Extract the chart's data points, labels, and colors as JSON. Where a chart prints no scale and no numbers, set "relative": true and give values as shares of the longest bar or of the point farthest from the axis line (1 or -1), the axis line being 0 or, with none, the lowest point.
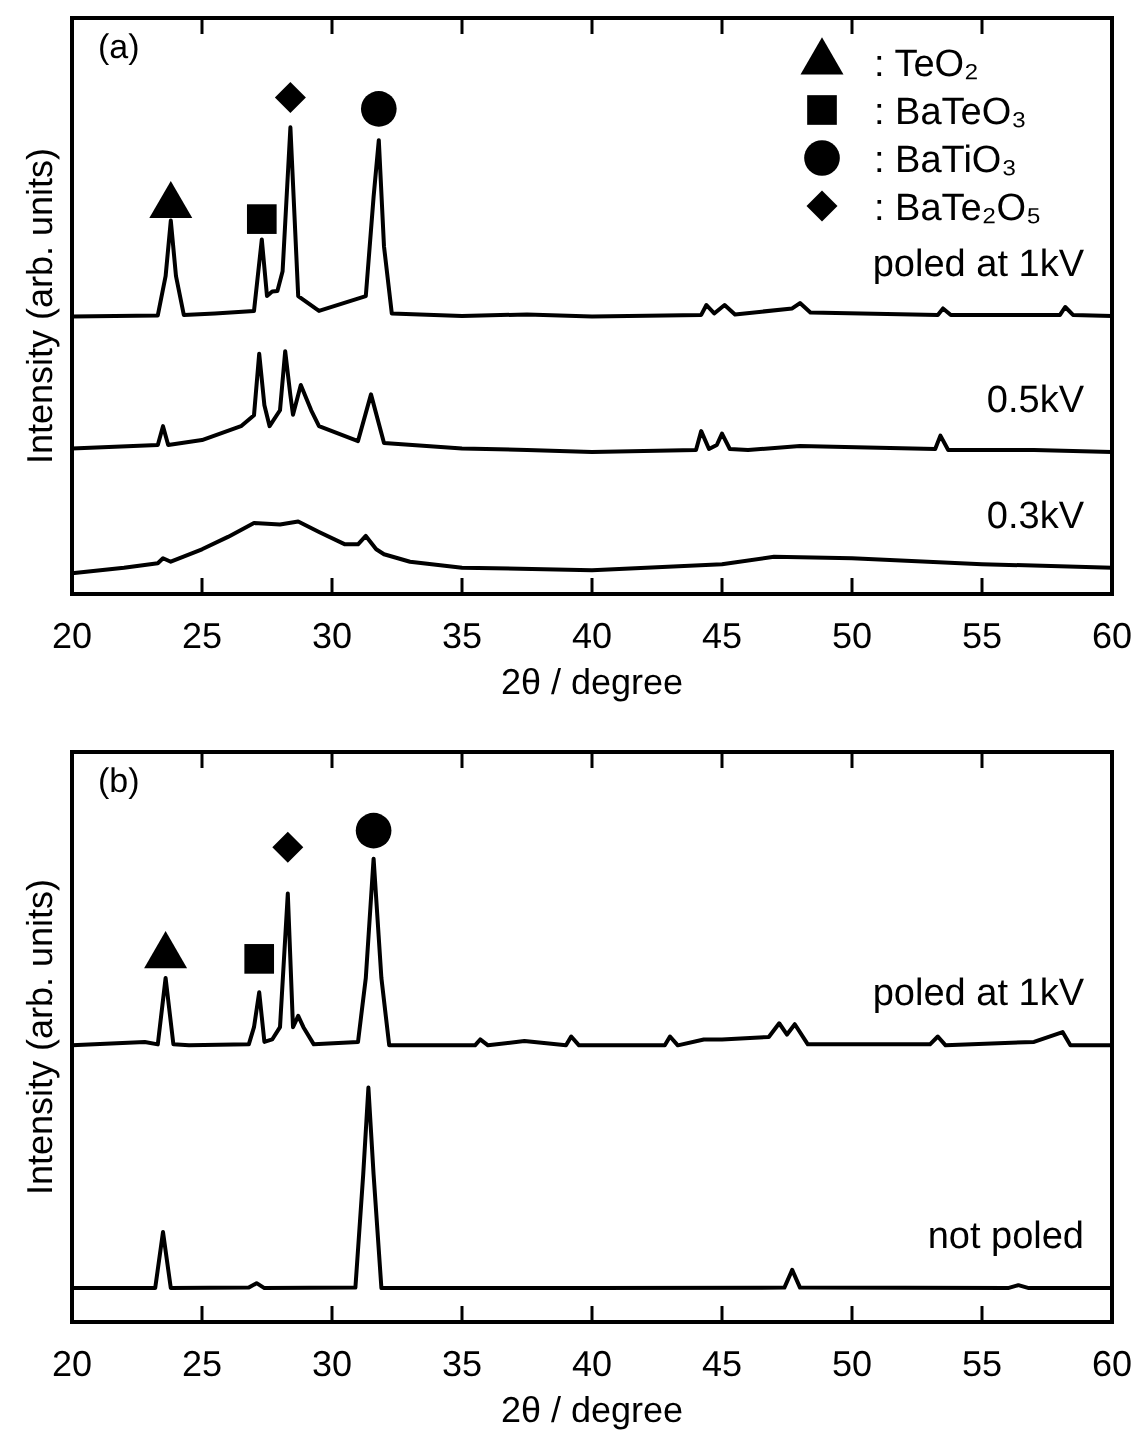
{
  "chart_data": [
    {
      "type": "line",
      "relative": true,
      "xlim": [
        20,
        60
      ],
      "xticks": [
        20,
        25,
        30,
        35,
        40,
        45,
        50,
        55,
        60
      ],
      "xlabel": "2θ / degree",
      "ylabel": "Intensity (arb. units)",
      "annotations": [
        "(a)"
      ],
      "legend": "top right",
      "series": [
        {
          "name": "poled at 1kV",
          "color": "#000000",
          "x": [
            20,
            23.3,
            23.6,
            23.8,
            24.0,
            24.3,
            25.5,
            27.0,
            27.3,
            27.5,
            27.7,
            27.9,
            28.1,
            28.4,
            28.7,
            29.5,
            31.3,
            31.6,
            31.8,
            32.0,
            32.3,
            35,
            37.5,
            40,
            44.2,
            44.4,
            44.7,
            45.1,
            45.5,
            47.7,
            48.0,
            48.4,
            53.3,
            53.5,
            53.8,
            58.0,
            58.2,
            58.5,
            60
          ],
          "values": [
            0.559,
            0.561,
            0.64,
            0.752,
            0.64,
            0.562,
            0.565,
            0.57,
            0.714,
            0.6,
            0.609,
            0.61,
            0.65,
            0.94,
            0.6,
            0.57,
            0.6,
            0.8,
            0.914,
            0.7,
            0.565,
            0.56,
            0.563,
            0.559,
            0.562,
            0.582,
            0.565,
            0.582,
            0.563,
            0.575,
            0.586,
            0.567,
            0.562,
            0.575,
            0.562,
            0.562,
            0.578,
            0.562,
            0.56
          ]
        },
        {
          "name": "0.5kV",
          "color": "#000000",
          "x": [
            20,
            23.3,
            23.5,
            23.7,
            25,
            26.5,
            27.0,
            27.2,
            27.4,
            27.6,
            28.0,
            28.2,
            28.4,
            28.5,
            28.8,
            29.2,
            29.5,
            31.0,
            31.5,
            32.0,
            35,
            37.5,
            40,
            44.0,
            44.2,
            44.5,
            44.8,
            45.0,
            45.3,
            46,
            48,
            53.2,
            53.4,
            53.7,
            57,
            60
          ],
          "values": [
            0.293,
            0.3,
            0.338,
            0.3,
            0.31,
            0.338,
            0.36,
            0.484,
            0.38,
            0.338,
            0.37,
            0.489,
            0.4,
            0.361,
            0.421,
            0.37,
            0.338,
            0.308,
            0.402,
            0.304,
            0.293,
            0.29,
            0.286,
            0.29,
            0.328,
            0.292,
            0.3,
            0.323,
            0.292,
            0.29,
            0.298,
            0.292,
            0.319,
            0.29,
            0.29,
            0.286
          ]
        },
        {
          "name": "0.3kV",
          "color": "#000000",
          "x": [
            20,
            22,
            23.3,
            23.5,
            23.8,
            25,
            26,
            27,
            28,
            28.7,
            29.5,
            30.5,
            31.0,
            31.3,
            31.7,
            32,
            33,
            35,
            40,
            45,
            47,
            50,
            55,
            60
          ],
          "values": [
            0.042,
            0.053,
            0.062,
            0.072,
            0.065,
            0.09,
            0.115,
            0.143,
            0.14,
            0.146,
            0.125,
            0.1,
            0.1,
            0.117,
            0.09,
            0.08,
            0.065,
            0.053,
            0.048,
            0.06,
            0.075,
            0.072,
            0.06,
            0.053
          ]
        },
        {
          "name": ": TeO₂",
          "type": "scatter",
          "marker": "triangle",
          "color": "#000000",
          "x": [
            23.8
          ],
          "values": [
            0.782
          ]
        },
        {
          "name": ": BaTeO₃",
          "type": "scatter",
          "marker": "square",
          "color": "#000000",
          "x": [
            27.3
          ],
          "values": [
            0.755
          ]
        },
        {
          "name": ": BaTiO₃",
          "type": "scatter",
          "marker": "circle",
          "color": "#000000",
          "x": [
            31.8
          ],
          "values": [
            0.977
          ]
        },
        {
          "name": ": BaTe₂O₅",
          "type": "scatter",
          "marker": "diamond",
          "color": "#000000",
          "x": [
            28.4
          ],
          "values": [
            1.0
          ]
        }
      ]
    },
    {
      "type": "line",
      "relative": true,
      "xlim": [
        20,
        60
      ],
      "xticks": [
        20,
        25,
        30,
        35,
        40,
        45,
        50,
        55,
        60
      ],
      "xlabel": "2θ / degree",
      "ylabel": "Intensity (arb. units)",
      "annotations": [
        "(b)"
      ],
      "series": [
        {
          "name": "poled at 1kV",
          "color": "#000000",
          "x": [
            20,
            22.8,
            23.3,
            23.6,
            23.9,
            24.5,
            26.8,
            27.0,
            27.2,
            27.4,
            27.7,
            28.0,
            28.3,
            28.5,
            28.7,
            28.9,
            29.3,
            31.0,
            31.3,
            31.6,
            31.9,
            32.2,
            35.5,
            35.7,
            36,
            37.4,
            39.0,
            39.2,
            39.5,
            42.8,
            43,
            43.3,
            44.3,
            45,
            46.8,
            47.2,
            47.5,
            47.8,
            48.3,
            53.0,
            53.3,
            53.6,
            57.0,
            58.1,
            58.4,
            60
          ],
          "values": [
            0.563,
            0.57,
            0.565,
            0.7,
            0.565,
            0.563,
            0.565,
            0.6,
            0.671,
            0.57,
            0.575,
            0.6,
            0.872,
            0.6,
            0.623,
            0.6,
            0.565,
            0.57,
            0.7,
            0.943,
            0.7,
            0.563,
            0.563,
            0.575,
            0.563,
            0.572,
            0.563,
            0.581,
            0.563,
            0.563,
            0.581,
            0.563,
            0.575,
            0.575,
            0.58,
            0.608,
            0.585,
            0.606,
            0.565,
            0.565,
            0.581,
            0.563,
            0.57,
            0.59,
            0.563,
            0.563
          ]
        },
        {
          "name": "not poled",
          "color": "#000000",
          "x": [
            20,
            23.2,
            23.5,
            23.8,
            26.8,
            27.1,
            27.4,
            30.9,
            31.2,
            31.4,
            31.6,
            31.9,
            35,
            40,
            47.4,
            47.7,
            48.0,
            56,
            56.4,
            56.8,
            60
          ],
          "values": [
            0.069,
            0.069,
            0.183,
            0.069,
            0.07,
            0.079,
            0.069,
            0.07,
            0.3,
            0.477,
            0.3,
            0.069,
            0.069,
            0.069,
            0.07,
            0.106,
            0.07,
            0.069,
            0.075,
            0.069,
            0.069
          ]
        },
        {
          "type": "scatter",
          "marker": "triangle",
          "color": "#000000",
          "x": [
            23.6
          ],
          "values": [
            0.745
          ]
        },
        {
          "type": "scatter",
          "marker": "square",
          "color": "#000000",
          "x": [
            27.2
          ],
          "values": [
            0.739
          ]
        },
        {
          "type": "scatter",
          "marker": "circle",
          "color": "#000000",
          "x": [
            31.6
          ],
          "values": [
            1.0
          ]
        },
        {
          "type": "scatter",
          "marker": "diamond",
          "color": "#000000",
          "x": [
            28.3
          ],
          "values": [
            0.966
          ]
        }
      ]
    }
  ]
}
